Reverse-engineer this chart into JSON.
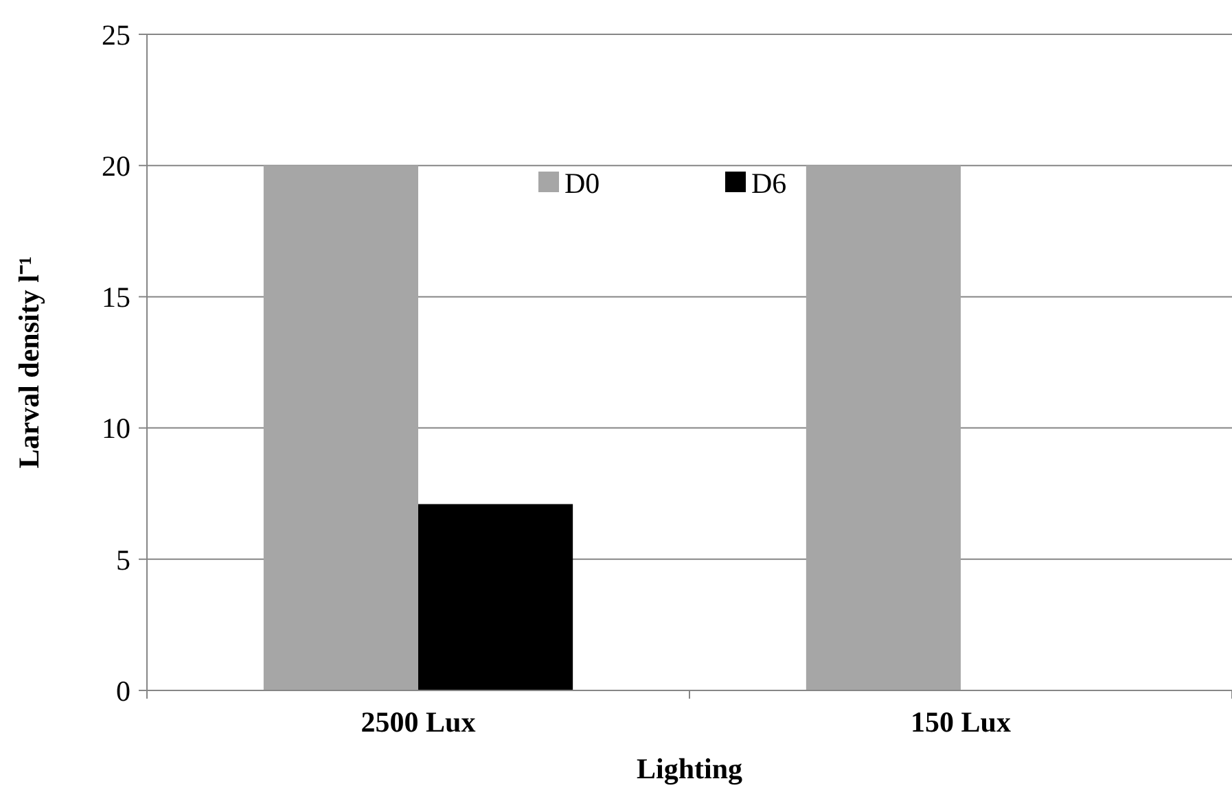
{
  "chart_data": {
    "type": "bar",
    "xlabel": "Lighting",
    "ylabel": "Larval density l⁻¹",
    "categories": [
      "2500 Lux",
      "150 Lux"
    ],
    "series": [
      {
        "name": "D0",
        "color": "#a6a6a6",
        "values": [
          20,
          20
        ]
      },
      {
        "name": "D6",
        "color": "#000000",
        "values": [
          7.1,
          0
        ]
      }
    ],
    "ylim": [
      0,
      25
    ],
    "yticks": [
      0,
      5,
      10,
      15,
      20,
      25
    ],
    "grid": "y",
    "legend": "top"
  }
}
